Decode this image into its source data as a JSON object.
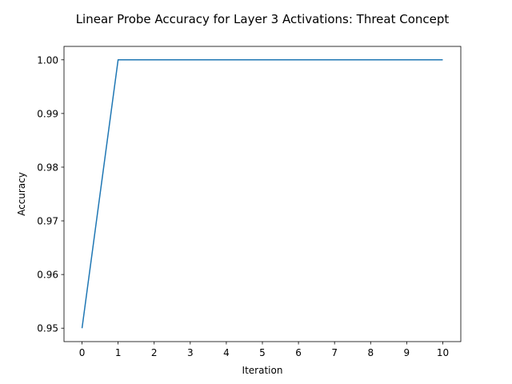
{
  "chart_data": {
    "type": "line",
    "title": "Linear Probe Accuracy for Layer 3 Activations: Threat Concept",
    "xlabel": "Iteration",
    "ylabel": "Accuracy",
    "x": [
      0,
      1,
      2,
      3,
      4,
      5,
      6,
      7,
      8,
      9,
      10
    ],
    "series": [
      {
        "values": [
          0.95,
          1.0,
          1.0,
          1.0,
          1.0,
          1.0,
          1.0,
          1.0,
          1.0,
          1.0,
          1.0
        ],
        "color": "#1f77b4"
      }
    ],
    "xticks": [
      "0",
      "1",
      "2",
      "3",
      "4",
      "5",
      "6",
      "7",
      "8",
      "9",
      "10"
    ],
    "yticks": [
      "0.95",
      "0.96",
      "0.97",
      "0.98",
      "0.99",
      "1.00"
    ],
    "xlim": [
      -0.5,
      10.5
    ],
    "ylim": [
      0.9475,
      1.0025
    ],
    "grid": false,
    "legend": false
  }
}
